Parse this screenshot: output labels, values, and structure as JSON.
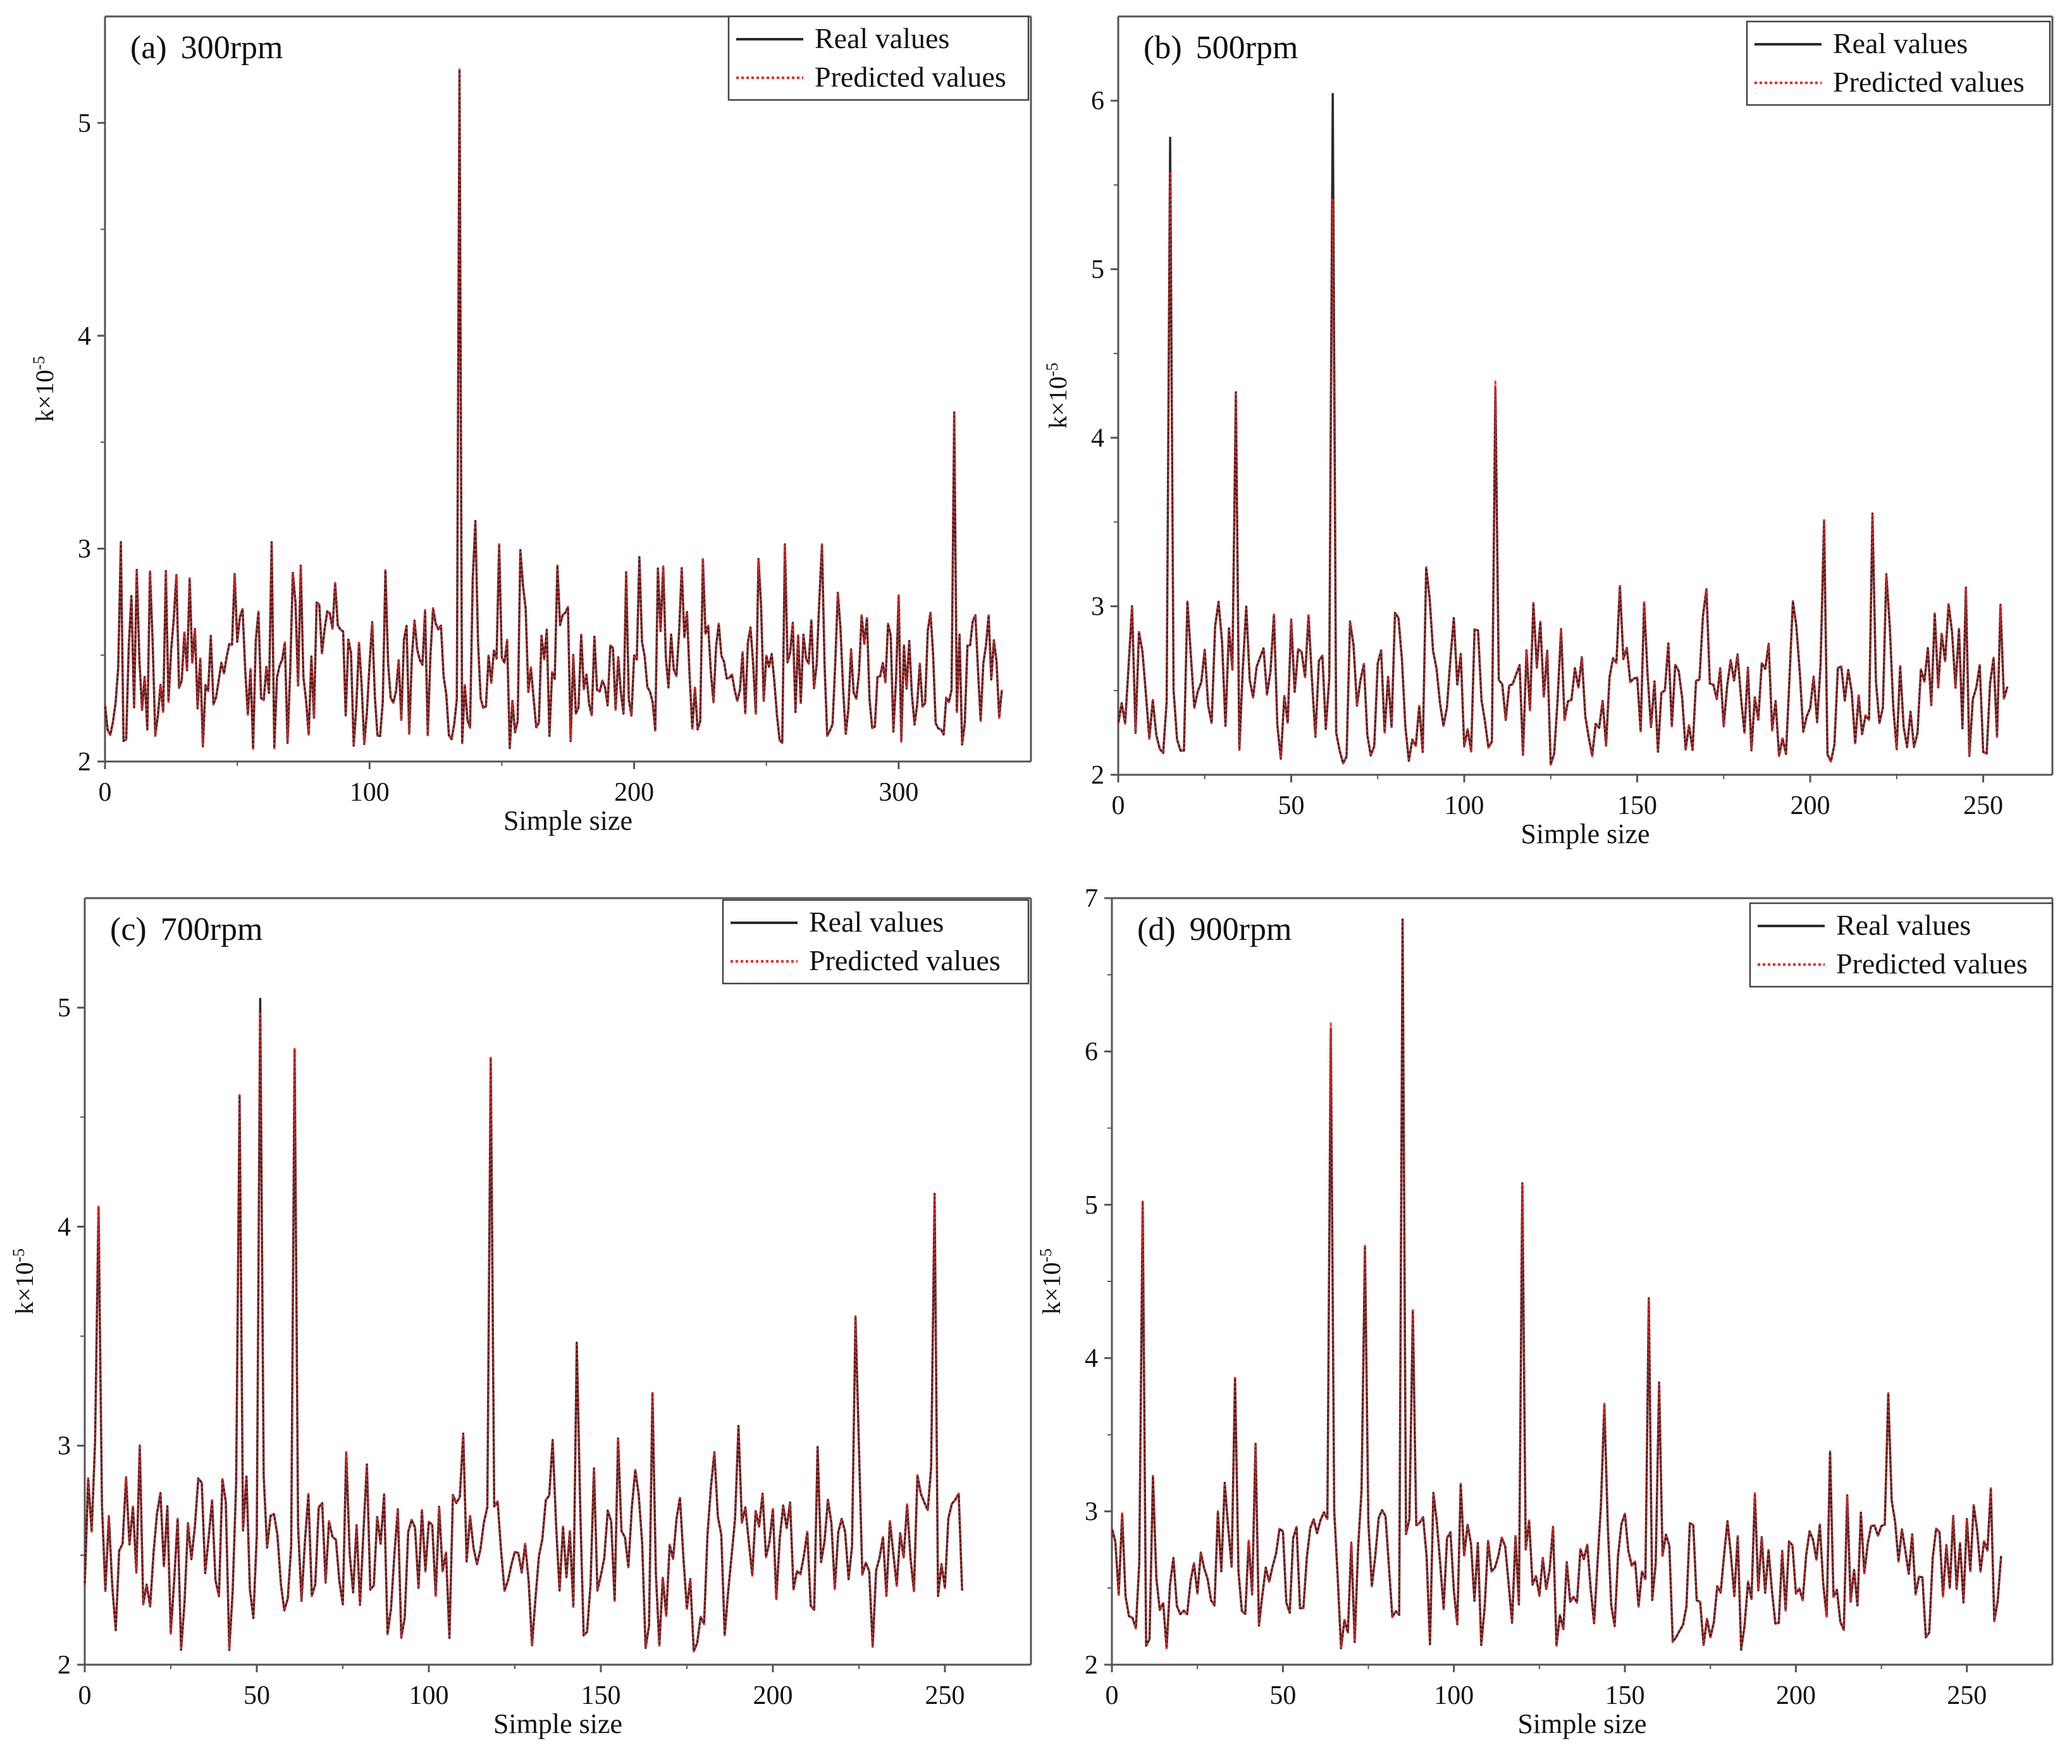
{
  "colors": {
    "real": "#2b2b2b",
    "predicted": "#ff2020",
    "axis": "#555555",
    "text": "#111111"
  },
  "legend": {
    "real_label": "Real values",
    "predicted_label": "Predicted values"
  },
  "chart_data": [
    {
      "type": "line",
      "panel_label": "(a)",
      "title": "300rpm",
      "xlabel": "Simple size",
      "ylabel_base": "k×10",
      "ylabel_exp": "-5",
      "xlim": [
        0,
        350
      ],
      "ylim": [
        2,
        5.5
      ],
      "xticks": [
        0,
        100,
        200,
        300
      ],
      "yticks": [
        2,
        3,
        4,
        5
      ],
      "n_points": 340,
      "baseline": 2.4,
      "spread": 0.16,
      "seed": 11,
      "peaks": [
        [
          6,
          3.03
        ],
        [
          12,
          2.9
        ],
        [
          32,
          2.86
        ],
        [
          49,
          2.88
        ],
        [
          63,
          3.03
        ],
        [
          74,
          2.92
        ],
        [
          124,
          2.72
        ],
        [
          134,
          5.25
        ],
        [
          140,
          3.13
        ],
        [
          149,
          3.02
        ],
        [
          171,
          2.92
        ],
        [
          202,
          2.96
        ],
        [
          226,
          2.95
        ],
        [
          257,
          3.02
        ],
        [
          271,
          3.02
        ],
        [
          300,
          2.78
        ],
        [
          321,
          3.64
        ]
      ],
      "series": [
        {
          "name": "Real values",
          "style": "solid"
        },
        {
          "name": "Predicted values",
          "style": "dotted"
        }
      ]
    },
    {
      "type": "line",
      "panel_label": "(b)",
      "title": "500rpm",
      "xlabel": "Simple size",
      "ylabel_base": "k×10",
      "ylabel_exp": "-5",
      "xlim": [
        0,
        270
      ],
      "ylim": [
        2,
        6.5
      ],
      "xticks": [
        0,
        50,
        100,
        150,
        200,
        250
      ],
      "yticks": [
        2,
        3,
        4,
        5,
        6
      ],
      "n_points": 258,
      "baseline": 2.45,
      "spread": 0.18,
      "seed": 23,
      "peaks": [
        [
          4,
          3.0
        ],
        [
          15,
          5.78
        ],
        [
          28,
          2.88
        ],
        [
          34,
          4.27
        ],
        [
          45,
          2.95
        ],
        [
          62,
          6.04
        ],
        [
          81,
          2.93
        ],
        [
          89,
          3.23
        ],
        [
          109,
          4.3
        ],
        [
          145,
          3.12
        ],
        [
          170,
          3.1
        ],
        [
          195,
          3.03
        ],
        [
          204,
          3.51
        ],
        [
          218,
          3.55
        ],
        [
          222,
          3.19
        ],
        [
          245,
          3.11
        ]
      ],
      "pred_peaks": [
        [
          15,
          5.58
        ],
        [
          62,
          5.42
        ],
        [
          109,
          4.34
        ]
      ],
      "series": [
        {
          "name": "Real values",
          "style": "solid"
        },
        {
          "name": "Predicted values",
          "style": "dotted"
        }
      ]
    },
    {
      "type": "line",
      "panel_label": "(c)",
      "title": "700rpm",
      "xlabel": "Simple size",
      "ylabel_base": "k×10",
      "ylabel_exp": "-5",
      "xlim": [
        0,
        275
      ],
      "ylim": [
        2,
        5.5
      ],
      "xticks": [
        0,
        50,
        100,
        150,
        200,
        250
      ],
      "yticks": [
        2,
        3,
        4,
        5
      ],
      "n_points": 256,
      "baseline": 2.5,
      "spread": 0.17,
      "seed": 37,
      "peaks": [
        [
          4,
          4.09
        ],
        [
          16,
          3.0
        ],
        [
          45,
          4.6
        ],
        [
          51,
          5.04
        ],
        [
          61,
          4.81
        ],
        [
          76,
          2.97
        ],
        [
          118,
          4.77
        ],
        [
          143,
          3.47
        ],
        [
          165,
          3.24
        ],
        [
          190,
          3.09
        ],
        [
          224,
          3.59
        ],
        [
          247,
          4.15
        ]
      ],
      "pred_peaks": [
        [
          51,
          4.98
        ]
      ],
      "series": [
        {
          "name": "Real values",
          "style": "solid"
        },
        {
          "name": "Predicted values",
          "style": "dotted"
        }
      ]
    },
    {
      "type": "line",
      "panel_label": "(d)",
      "title": "900rpm",
      "xlabel": "Simple size",
      "ylabel_base": "k×10",
      "ylabel_exp": "-5",
      "xlim": [
        0,
        275
      ],
      "ylim": [
        2,
        7
      ],
      "xticks": [
        0,
        50,
        100,
        150,
        200,
        250
      ],
      "yticks": [
        2,
        3,
        4,
        5,
        6,
        7
      ],
      "n_points": 261,
      "baseline": 2.6,
      "spread": 0.2,
      "seed": 53,
      "peaks": [
        [
          9,
          5.02
        ],
        [
          12,
          3.23
        ],
        [
          36,
          3.87
        ],
        [
          42,
          3.44
        ],
        [
          64,
          6.15
        ],
        [
          74,
          4.73
        ],
        [
          85,
          6.86
        ],
        [
          88,
          4.31
        ],
        [
          120,
          5.14
        ],
        [
          144,
          3.7
        ],
        [
          157,
          4.39
        ],
        [
          160,
          3.84
        ],
        [
          210,
          3.39
        ],
        [
          227,
          3.77
        ],
        [
          257,
          3.15
        ]
      ],
      "pred_peaks": [
        [
          64,
          6.19
        ]
      ],
      "series": [
        {
          "name": "Real values",
          "style": "solid"
        },
        {
          "name": "Predicted values",
          "style": "dotted"
        }
      ]
    }
  ]
}
